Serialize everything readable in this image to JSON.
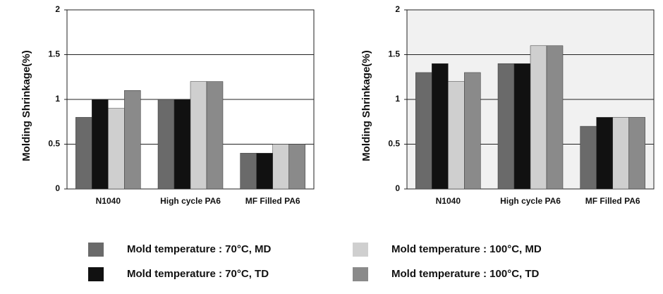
{
  "chart_data": [
    {
      "type": "bar",
      "ylabel": "Molding Shrinkage(%)",
      "categories": [
        "N1040",
        "High cycle PA6",
        "MF Filled PA6"
      ],
      "series": [
        {
          "name": "Mold temperature : 70°C, MD",
          "color": "#6a6a6a",
          "values": [
            0.8,
            1.0,
            0.4
          ]
        },
        {
          "name": "Mold temperature : 70°C, TD",
          "color": "#111111",
          "values": [
            1.0,
            1.0,
            0.4
          ]
        },
        {
          "name": "Mold temperature : 100°C, MD",
          "color": "#cfcfcf",
          "values": [
            0.9,
            1.2,
            0.5
          ]
        },
        {
          "name": "Mold temperature : 100°C, TD",
          "color": "#8a8a8a",
          "values": [
            1.1,
            1.2,
            0.5
          ]
        }
      ],
      "ylim": [
        0,
        2
      ],
      "yticks": [
        0,
        0.5,
        1,
        1.5,
        2
      ],
      "grid": true
    },
    {
      "type": "bar",
      "ylabel": "Molding Shrinkage(%)",
      "categories": [
        "N1040",
        "High cycle PA6",
        "MF Filled PA6"
      ],
      "series": [
        {
          "color": "#6a6a6a",
          "values": [
            1.3,
            1.4,
            0.7
          ]
        },
        {
          "color": "#111111",
          "values": [
            1.4,
            1.4,
            0.8
          ]
        },
        {
          "color": "#cfcfcf",
          "values": [
            1.2,
            1.6,
            0.8
          ]
        },
        {
          "color": "#8a8a8a",
          "values": [
            1.3,
            1.6,
            0.8
          ]
        }
      ],
      "ylim": [
        0,
        2
      ],
      "yticks": [
        0,
        0.5,
        1,
        1.5,
        2
      ],
      "grid": true
    }
  ]
}
